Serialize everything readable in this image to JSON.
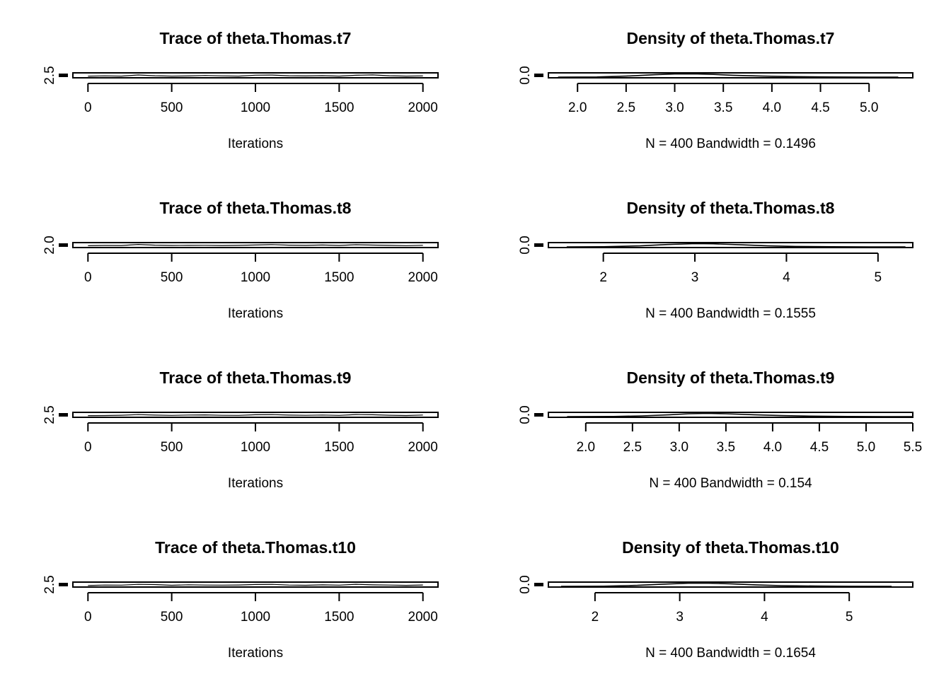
{
  "chart_data": [
    {
      "type": "line",
      "kind": "trace",
      "title": "Trace of theta.Thomas.t7",
      "xlabel": "Iterations",
      "xlim": [
        -90,
        2090
      ],
      "xticks": [
        0,
        500,
        1000,
        1500,
        2000
      ],
      "xtick_labels": [
        "0",
        "500",
        "1000",
        "1500",
        "2000"
      ],
      "yticks": [
        2.5
      ],
      "ytick_labels": [
        "2.5"
      ],
      "ylim": [
        2.0,
        5.5
      ],
      "series": [
        {
          "x": [
            0,
            100,
            200,
            300,
            400,
            500,
            600,
            700,
            800,
            900,
            1000,
            1100,
            1200,
            1300,
            1400,
            1500,
            1600,
            1700,
            1800,
            1900,
            2000
          ],
          "values": [
            2.9,
            3.2,
            3.0,
            4.1,
            3.3,
            3.0,
            3.1,
            3.6,
            3.2,
            3.0,
            3.9,
            4.0,
            3.3,
            3.1,
            3.4,
            3.0,
            3.8,
            4.2,
            3.3,
            3.0,
            3.2
          ]
        }
      ]
    },
    {
      "type": "line",
      "kind": "density",
      "title": "Density of theta.Thomas.t7",
      "xlabel": "N = 400   Bandwidth = 0.1496",
      "xlim": [
        1.7,
        5.45
      ],
      "xticks": [
        2.0,
        2.5,
        3.0,
        3.5,
        4.0,
        4.5,
        5.0
      ],
      "xtick_labels": [
        "2.0",
        "2.5",
        "3.0",
        "3.5",
        "4.0",
        "4.5",
        "5.0"
      ],
      "yticks": [
        0.0
      ],
      "ytick_labels": [
        "0.0"
      ],
      "ylim": [
        0,
        1.05
      ],
      "series": [
        {
          "x": [
            1.8,
            2.2,
            2.5,
            2.8,
            3.0,
            3.2,
            3.4,
            3.6,
            3.9,
            4.2,
            4.6,
            5.0,
            5.3
          ],
          "values": [
            0.0,
            0.05,
            0.3,
            0.72,
            0.92,
            0.95,
            0.8,
            0.55,
            0.3,
            0.14,
            0.05,
            0.01,
            0.0
          ]
        }
      ]
    },
    {
      "type": "line",
      "kind": "trace",
      "title": "Trace of theta.Thomas.t8",
      "xlabel": "Iterations",
      "xlim": [
        -90,
        2090
      ],
      "xticks": [
        0,
        500,
        1000,
        1500,
        2000
      ],
      "xtick_labels": [
        "0",
        "500",
        "1000",
        "1500",
        "2000"
      ],
      "yticks": [
        2.0
      ],
      "ytick_labels": [
        "2.0"
      ],
      "ylim": [
        1.5,
        5.5
      ],
      "series": [
        {
          "x": [
            0,
            100,
            200,
            300,
            400,
            500,
            600,
            700,
            800,
            900,
            1000,
            1100,
            1200,
            1300,
            1400,
            1500,
            1600,
            1700,
            1800,
            1900,
            2000
          ],
          "values": [
            2.9,
            3.1,
            3.0,
            4.2,
            3.4,
            3.1,
            3.2,
            3.3,
            3.0,
            3.2,
            3.6,
            4.1,
            3.4,
            3.2,
            3.6,
            3.1,
            3.9,
            3.5,
            3.2,
            2.9,
            3.3
          ]
        }
      ]
    },
    {
      "type": "line",
      "kind": "density",
      "title": "Density of theta.Thomas.t8",
      "xlabel": "N = 400   Bandwidth = 0.1555",
      "xlim": [
        1.4,
        5.38
      ],
      "xticks": [
        2,
        3,
        4,
        5
      ],
      "xtick_labels": [
        "2",
        "3",
        "4",
        "5"
      ],
      "yticks": [
        0.0
      ],
      "ytick_labels": [
        "0.0"
      ],
      "ylim": [
        0,
        1.05
      ],
      "series": [
        {
          "x": [
            1.6,
            2.0,
            2.4,
            2.7,
            3.0,
            3.2,
            3.5,
            3.8,
            4.1,
            4.5,
            4.9,
            5.3
          ],
          "values": [
            0.0,
            0.05,
            0.3,
            0.7,
            0.95,
            0.9,
            0.6,
            0.3,
            0.12,
            0.04,
            0.01,
            0.0
          ]
        }
      ]
    },
    {
      "type": "line",
      "kind": "trace",
      "title": "Trace of theta.Thomas.t9",
      "xlabel": "Iterations",
      "xlim": [
        -90,
        2090
      ],
      "xticks": [
        0,
        500,
        1000,
        1500,
        2000
      ],
      "xtick_labels": [
        "0",
        "500",
        "1000",
        "1500",
        "2000"
      ],
      "yticks": [
        2.5
      ],
      "ytick_labels": [
        "2.5"
      ],
      "ylim": [
        2.0,
        5.6
      ],
      "series": [
        {
          "x": [
            0,
            100,
            200,
            300,
            400,
            500,
            600,
            700,
            800,
            900,
            1000,
            1100,
            1200,
            1300,
            1400,
            1500,
            1600,
            1700,
            1800,
            1900,
            2000
          ],
          "values": [
            3.0,
            3.1,
            3.4,
            4.0,
            3.5,
            3.2,
            3.6,
            3.7,
            3.3,
            3.2,
            3.9,
            4.0,
            3.5,
            3.3,
            3.6,
            3.2,
            4.1,
            3.9,
            3.4,
            3.1,
            3.6
          ]
        }
      ]
    },
    {
      "type": "line",
      "kind": "density",
      "title": "Density of theta.Thomas.t9",
      "xlabel": "N = 400   Bandwidth = 0.154",
      "xlim": [
        1.6,
        5.5
      ],
      "xticks": [
        2.0,
        2.5,
        3.0,
        3.5,
        4.0,
        4.5,
        5.0,
        5.5
      ],
      "xtick_labels": [
        "2.0",
        "2.5",
        "3.0",
        "3.5",
        "4.0",
        "4.5",
        "5.0",
        "5.5"
      ],
      "yticks": [
        0.0
      ],
      "ytick_labels": [
        "0.0"
      ],
      "ylim": [
        0,
        1.05
      ],
      "series": [
        {
          "x": [
            1.8,
            2.3,
            2.6,
            2.9,
            3.1,
            3.3,
            3.5,
            3.8,
            4.1,
            4.4,
            4.8,
            5.2,
            5.5
          ],
          "values": [
            0.0,
            0.04,
            0.2,
            0.55,
            0.85,
            0.95,
            0.85,
            0.55,
            0.3,
            0.14,
            0.05,
            0.01,
            0.0
          ]
        }
      ]
    },
    {
      "type": "line",
      "kind": "trace",
      "title": "Trace of theta.Thomas.t10",
      "xlabel": "Iterations",
      "xlim": [
        -90,
        2090
      ],
      "xticks": [
        0,
        500,
        1000,
        1500,
        2000
      ],
      "xtick_labels": [
        "0",
        "500",
        "1000",
        "1500",
        "2000"
      ],
      "yticks": [
        2.5
      ],
      "ytick_labels": [
        "2.5"
      ],
      "ylim": [
        2.0,
        5.6
      ],
      "series": [
        {
          "x": [
            0,
            100,
            200,
            300,
            400,
            500,
            600,
            700,
            800,
            900,
            1000,
            1100,
            1200,
            1300,
            1400,
            1500,
            1600,
            1700,
            1800,
            1900,
            2000
          ],
          "values": [
            2.9,
            3.3,
            3.2,
            4.0,
            3.8,
            3.1,
            3.6,
            3.3,
            3.2,
            3.4,
            3.9,
            4.0,
            3.3,
            3.1,
            3.5,
            3.2,
            4.1,
            3.5,
            3.3,
            3.0,
            3.4
          ]
        }
      ]
    },
    {
      "type": "line",
      "kind": "density",
      "title": "Density of theta.Thomas.t10",
      "xlabel": "N = 400   Bandwidth = 0.1654",
      "xlim": [
        1.45,
        5.75
      ],
      "xticks": [
        2,
        3,
        4,
        5
      ],
      "xtick_labels": [
        "2",
        "3",
        "4",
        "5"
      ],
      "yticks": [
        0.0
      ],
      "ytick_labels": [
        "0.0"
      ],
      "ylim": [
        0,
        1.05
      ],
      "series": [
        {
          "x": [
            1.6,
            2.1,
            2.5,
            2.8,
            3.1,
            3.3,
            3.6,
            3.9,
            4.2,
            4.6,
            5.0,
            5.5
          ],
          "values": [
            0.0,
            0.05,
            0.3,
            0.65,
            0.92,
            0.95,
            0.75,
            0.45,
            0.22,
            0.08,
            0.02,
            0.0
          ]
        }
      ]
    }
  ]
}
